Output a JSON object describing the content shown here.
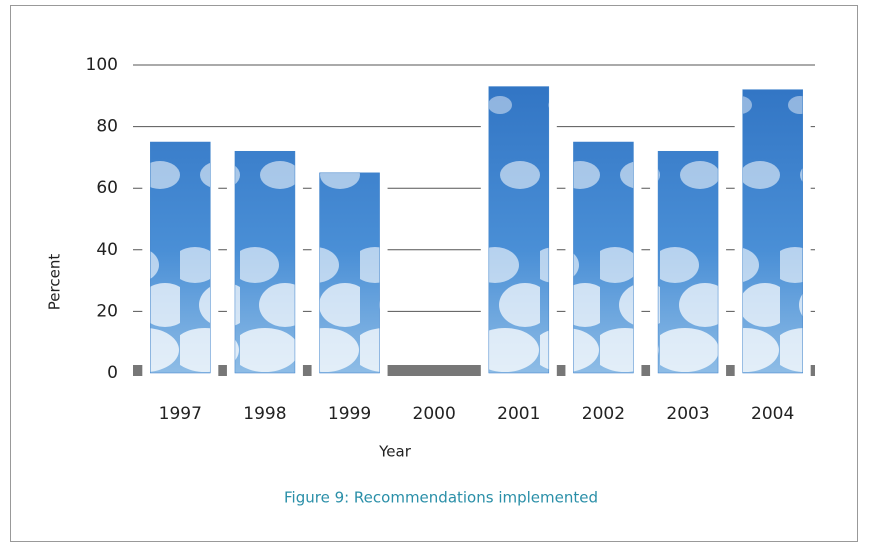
{
  "chart_data": {
    "type": "bar",
    "caption": "Figure 9: Recommendations implemented",
    "x_label": "Year",
    "y_label": "Percent",
    "categories": [
      "1997",
      "1998",
      "1999",
      "2000",
      "2001",
      "2002",
      "2003",
      "2004"
    ],
    "values": [
      75,
      72,
      65,
      null,
      93,
      75,
      72,
      92
    ],
    "color": "#3a7fc9",
    "ylim": [
      0,
      100
    ],
    "yticks": [
      0,
      20,
      40,
      60,
      80,
      100
    ],
    "grid": true
  }
}
